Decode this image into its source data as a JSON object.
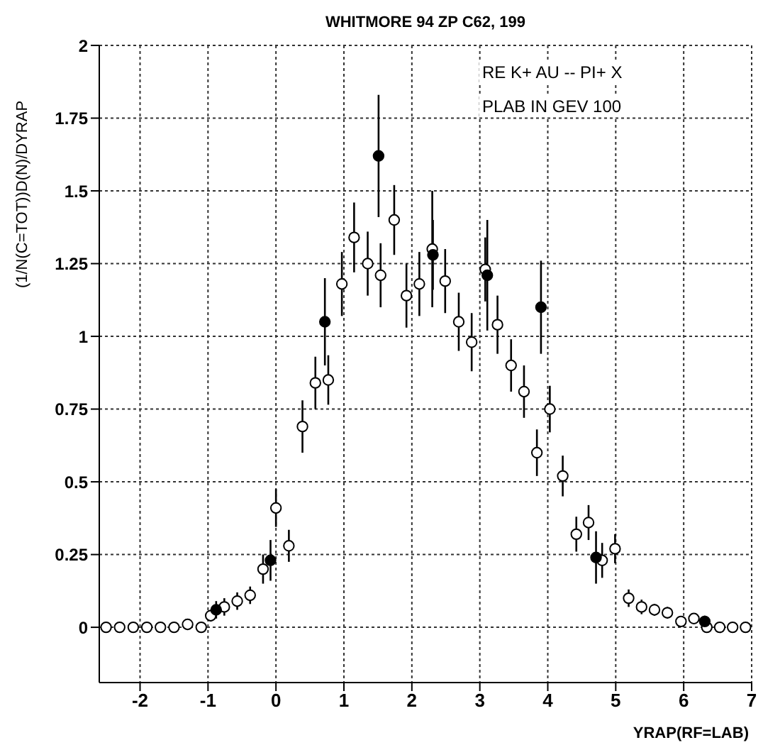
{
  "chart_data": {
    "type": "scatter",
    "title": "WHITMORE 94   ZP C62, 199",
    "xlabel": "YRAP(RF=LAB)",
    "ylabel": "(1/N(C=TOT))D(N)/DYRAP",
    "annotations": [
      "RE   K+ AU -- PI+ X",
      "PLAB IN GEV   100"
    ],
    "xlim": [
      -2.6,
      7
    ],
    "xticks": [
      -2,
      -1,
      0,
      1,
      2,
      3,
      4,
      5,
      6,
      7
    ],
    "ylim": [
      -0.19,
      2
    ],
    "yticks": [
      0,
      0.25,
      0.5,
      0.75,
      1,
      1.25,
      1.5,
      1.75,
      2
    ],
    "grid": true,
    "marker": "circle",
    "legend": false,
    "series": [
      {
        "color": "#ffffff",
        "x": [
          -2.5,
          -2.3,
          -2.1,
          -1.9,
          -1.7,
          -1.5,
          -1.3,
          -1.1,
          -0.96,
          -0.76,
          -0.57,
          -0.38,
          -0.19,
          0.0,
          0.19,
          0.39,
          0.58,
          0.77,
          0.97,
          1.15,
          1.35,
          1.54,
          1.74,
          1.92,
          2.11,
          2.3,
          2.49,
          2.69,
          2.88,
          3.08,
          3.26,
          3.46,
          3.65,
          3.84,
          4.03,
          4.22,
          4.42,
          4.6,
          4.8,
          4.99,
          5.19,
          5.38,
          5.57,
          5.76,
          5.96,
          6.15,
          6.34,
          6.53,
          6.72,
          6.91
        ],
        "values": [
          0,
          0,
          0,
          0,
          0,
          0,
          0.01,
          0,
          0.04,
          0.07,
          0.09,
          0.11,
          0.2,
          0.41,
          0.28,
          0.69,
          0.84,
          0.85,
          1.18,
          1.34,
          1.25,
          1.21,
          1.4,
          1.14,
          1.18,
          1.3,
          1.19,
          1.05,
          0.98,
          1.23,
          1.04,
          0.9,
          0.81,
          0.6,
          0.75,
          0.52,
          0.32,
          0.36,
          0.23,
          0.27,
          0.1,
          0.07,
          0.06,
          0.05,
          0.02,
          0.03,
          0,
          0,
          0,
          0
        ],
        "errors": [
          null,
          null,
          null,
          null,
          null,
          null,
          null,
          null,
          0.02,
          0.03,
          0.03,
          0.03,
          0.05,
          0.065,
          0.055,
          0.09,
          0.09,
          0.085,
          0.11,
          0.12,
          0.11,
          0.11,
          0.12,
          0.11,
          0.11,
          0.2,
          0.11,
          0.1,
          0.1,
          0.11,
          0.1,
          0.09,
          0.09,
          0.08,
          0.08,
          0.07,
          0.06,
          0.06,
          0.06,
          0.05,
          0.03,
          0.025,
          0.02,
          0.02,
          null,
          null,
          null,
          null,
          null,
          null
        ]
      },
      {
        "color": "#000000",
        "x": [
          -0.88,
          -0.08,
          0.72,
          1.51,
          2.31,
          3.11,
          3.9,
          4.71,
          6.31
        ],
        "values": [
          0.06,
          0.23,
          1.05,
          1.62,
          1.28,
          1.21,
          1.1,
          0.24,
          0.02
        ],
        "errors": [
          0.03,
          0.07,
          0.15,
          0.21,
          0.12,
          0.19,
          0.16,
          0.09,
          0.02
        ]
      }
    ]
  }
}
